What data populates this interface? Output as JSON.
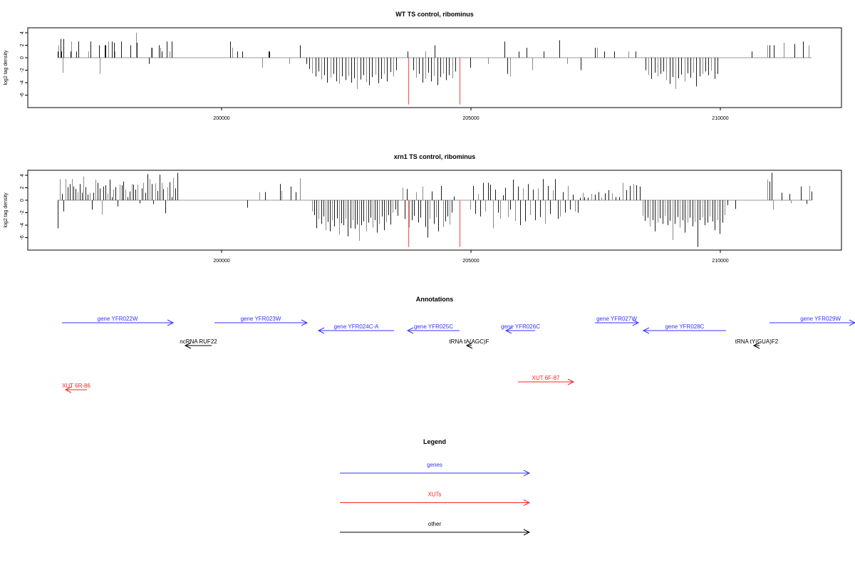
{
  "colors": {
    "gene": "#3333ff",
    "xut": "#ff2020",
    "other": "#000000",
    "highlight": "#ff6060",
    "axis": "#000000",
    "bar_dark": "#1a1a1a",
    "bar_light": "#8a8a8a"
  },
  "chart_data": [
    {
      "type": "bar",
      "title": "WT TS control, ribominus",
      "ylabel": "log2 tag density",
      "xlabel": "",
      "xlim": [
        196114,
        212429
      ],
      "ylim": [
        -8,
        4.8
      ],
      "yticks": [
        "4",
        "2",
        "0",
        "-2",
        "-4",
        "-6"
      ],
      "ytick_values": [
        4,
        2,
        0,
        -2,
        -4,
        -6
      ],
      "xticks": [
        "200000",
        "205000",
        "210000"
      ],
      "xtick_values": [
        200000,
        205000,
        210000
      ],
      "points": [
        [
          196714,
          1
        ],
        [
          196729,
          2
        ],
        [
          196771,
          3
        ],
        [
          196786,
          1
        ],
        [
          196814,
          -2.4
        ],
        [
          196829,
          3
        ],
        [
          196971,
          1
        ],
        [
          196986,
          2.6
        ],
        [
          197086,
          1
        ],
        [
          197129,
          2.6
        ],
        [
          197329,
          1
        ],
        [
          197371,
          2.6
        ],
        [
          197543,
          2
        ],
        [
          197557,
          -2.6
        ],
        [
          197657,
          2
        ],
        [
          197671,
          2
        ],
        [
          197729,
          2.6
        ],
        [
          197800,
          2.6
        ],
        [
          197843,
          2.4
        ],
        [
          197857,
          1
        ],
        [
          197986,
          2.6
        ],
        [
          198171,
          2
        ],
        [
          198286,
          4
        ],
        [
          198300,
          2.4
        ],
        [
          198543,
          -1
        ],
        [
          198586,
          1.6
        ],
        [
          198600,
          1.6
        ],
        [
          198743,
          2
        ],
        [
          198771,
          1.6
        ],
        [
          198800,
          1
        ],
        [
          198900,
          2.6
        ],
        [
          198957,
          1
        ],
        [
          199000,
          2.6
        ],
        [
          200171,
          2.6
        ],
        [
          200214,
          1.6
        ],
        [
          200314,
          1
        ],
        [
          200414,
          1
        ],
        [
          200814,
          -1.6
        ],
        [
          200943,
          1
        ],
        [
          200957,
          1
        ],
        [
          201357,
          -1
        ],
        [
          201571,
          2
        ],
        [
          203729,
          1
        ],
        [
          204086,
          1
        ],
        [
          204271,
          2
        ],
        [
          204986,
          -1.6
        ],
        [
          205343,
          -1
        ],
        [
          205671,
          2.6
        ],
        [
          205729,
          -2.6
        ],
        [
          205786,
          -3
        ],
        [
          205957,
          1
        ],
        [
          206114,
          1.6
        ],
        [
          206229,
          -2
        ],
        [
          206457,
          1
        ],
        [
          206771,
          2.8
        ],
        [
          206929,
          -1
        ],
        [
          207200,
          -2
        ],
        [
          207486,
          1.6
        ],
        [
          207529,
          1.6
        ],
        [
          207671,
          1
        ],
        [
          207871,
          1
        ],
        [
          208157,
          1
        ],
        [
          208300,
          1
        ],
        [
          210629,
          1
        ],
        [
          210943,
          2
        ],
        [
          210986,
          2
        ],
        [
          211071,
          2
        ],
        [
          211271,
          2.4
        ],
        [
          211486,
          2.2
        ],
        [
          211657,
          2.6
        ],
        [
          211771,
          2
        ]
      ],
      "segments": [
        {
          "start": 201700,
          "step": 60,
          "values": [
            -1,
            -1.8,
            -2.5,
            -3,
            -2.2,
            -3.5,
            -2.8,
            -4,
            -3.2,
            -2.6,
            -3.8,
            -4.2,
            -3,
            -3.6,
            -2.9,
            -4,
            -3.3,
            -5,
            -3.5,
            -2.8,
            -3.9,
            -4.4,
            -3.1,
            -2.7,
            -4.1,
            -3.4,
            -2.6,
            -3.8,
            -2.3,
            -3,
            -2
          ]
        },
        {
          "start": 203843,
          "step": 60,
          "values": [
            -2,
            -3.2,
            -2.6,
            -4,
            -3.4,
            -2.4,
            -3.8,
            -2.9,
            -4.4,
            -3.1,
            -2.5,
            -3.6,
            -2.8,
            -3.3,
            -2.2
          ]
        },
        {
          "start": 208500,
          "step": 60,
          "values": [
            -2,
            -2.8,
            -3.4,
            -2.4,
            -3,
            -2.6,
            -2.2,
            -3.6,
            -4.2,
            -3.1,
            -5,
            -3.3,
            -2.7,
            -3.8,
            -2.5,
            -3.2,
            -2.4,
            -4.6,
            -3,
            -2.6,
            -2.2,
            -2.8,
            -2.1,
            -3.4,
            -2.6
          ]
        }
      ],
      "highlights": [
        [
          203743,
          -7.5
        ],
        [
          204771,
          -7.5
        ]
      ]
    },
    {
      "type": "bar",
      "title": "xrn1 TS control, ribominus",
      "ylabel": "log2 tag density",
      "xlabel": "",
      "xlim": [
        196114,
        212429
      ],
      "ylim": [
        -8,
        4.8
      ],
      "yticks": [
        "4",
        "2",
        "0",
        "-2",
        "-4",
        "-6"
      ],
      "ytick_values": [
        4,
        2,
        0,
        -2,
        -4,
        -6
      ],
      "xticks": [
        "200000",
        "205000",
        "210000"
      ],
      "xtick_values": [
        200000,
        205000,
        210000
      ],
      "points": [
        [
          200514,
          -1.2
        ],
        [
          200757,
          1.3
        ],
        [
          200871,
          1.3
        ],
        [
          201171,
          2.6
        ],
        [
          201200,
          1.5
        ],
        [
          201386,
          2.2
        ],
        [
          201486,
          1.3
        ],
        [
          201571,
          3.5
        ],
        [
          210143,
          -0.8
        ],
        [
          210300,
          -1.4
        ],
        [
          210943,
          3.3
        ],
        [
          210986,
          3
        ],
        [
          211029,
          4.4
        ],
        [
          211057,
          -1.5
        ],
        [
          211229,
          1.2
        ],
        [
          211386,
          1
        ],
        [
          211414,
          -0.5
        ],
        [
          211614,
          2.2
        ],
        [
          211729,
          -0.6
        ],
        [
          211786,
          2.3
        ],
        [
          211829,
          1.4
        ]
      ],
      "segments": [
        {
          "start": 196714,
          "step": 40,
          "values": [
            -4.5,
            3.4,
            1,
            -1.8,
            3.4,
            2.1,
            2.6,
            3.4,
            2.2,
            1.8,
            1.3,
            2.6,
            1.2,
            3.8,
            2.1,
            0.9,
            1.2,
            -1.5,
            1.2,
            3.3,
            2.8,
            1.9,
            -2.3,
            2.2,
            2.4,
            1.1,
            3.3,
            0.5,
            1.7,
            2.1,
            -1,
            2.5,
            2.4,
            3,
            1.7,
            0.5,
            1.4,
            2.6,
            2.5,
            1.7,
            2.5,
            -0.5,
            1.9,
            2.8,
            1.2,
            4.2,
            3.4,
            2.6,
            -0.6,
            2.7,
            1.5,
            4.1,
            2.8,
            1.8,
            -2.1,
            2.1,
            2.9,
            0.5,
            3.6,
            1.9,
            4.4
          ]
        },
        {
          "start": 201814,
          "step": 45,
          "values": [
            -1.8,
            -2.4,
            -4.5,
            -3,
            -3.8,
            -2.6,
            -4.8,
            -3.5,
            -5,
            -3.2,
            -4.2,
            -2.9,
            -5.5,
            -3.7,
            -4,
            -3,
            -5.8,
            -4.5,
            -3.2,
            -4.6,
            -3.9,
            -6.5,
            -4,
            -3.4,
            -5,
            -3.6,
            -2.8,
            -4.4,
            -3.2,
            -5.2,
            -3.8,
            -2.6,
            -4.8,
            -3.5,
            -2.4,
            -3.9,
            -2,
            -1.5,
            -2.5
          ]
        },
        {
          "start": 203629,
          "step": 45,
          "values": [
            2,
            -3,
            1.8,
            -4.4,
            -3.2,
            -2.5,
            1.3,
            -3.6,
            -2.8,
            2.2,
            -4.3,
            -6,
            -3,
            1.4,
            -3.8,
            -2.7,
            -5,
            2.3,
            -4.3,
            -3.4,
            -2.6,
            -3.9,
            -2,
            0.6
          ]
        },
        {
          "start": 204986,
          "step": 50,
          "values": [
            -1.5,
            2.3,
            -2.2,
            1,
            -2.6,
            2.8,
            -1.8,
            2.8,
            2.5,
            -4.5,
            1.7,
            -2,
            -3,
            0.8,
            2,
            -2.7,
            -1.5,
            3.3,
            -3.3,
            2.2,
            -4,
            1.9,
            -3.4,
            2.6,
            -2.4,
            1.7,
            -3.2,
            1.9,
            -2.7,
            3.4,
            -3.8,
            2.3,
            -2.2,
            1.6,
            3.4,
            -3,
            -2.6,
            1.3,
            -2,
            2.3,
            -1.5,
            0.9,
            -1.8,
            -2,
            0.4,
            1.2
          ]
        },
        {
          "start": 207271,
          "step": 70,
          "values": [
            0.5,
            0.4,
            1,
            0.9,
            1.3,
            0.4,
            1.1,
            1.6,
            1.1,
            0.5,
            0.5,
            2.8,
            1.6,
            2.3,
            2.6,
            2.4,
            2.2
          ]
        },
        {
          "start": 208443,
          "step": 50,
          "values": [
            -2.5,
            -3.3,
            -2.8,
            -4.2,
            -3.2,
            -5,
            -3.6,
            -2.9,
            -3.8,
            -2.5,
            -4,
            -3.3,
            -6.4,
            -3.8,
            -2.7,
            -4.4,
            -3.2,
            -5.2,
            -3.6,
            -2.8,
            -4.2,
            -3.5,
            -7.5,
            -3.2,
            -2.8,
            -4,
            -3.6,
            -2.6,
            -3.4,
            -4.8,
            -3.2,
            -5.4,
            -3.6,
            -2.4
          ]
        }
      ],
      "highlights": [
        [
          203743,
          -7.5
        ],
        [
          204771,
          -7.5
        ]
      ]
    }
  ],
  "annotations": {
    "title": "Annotations",
    "features": [
      {
        "label": "gene YFR022W",
        "kind": "gene",
        "strand": "+",
        "start": 196800,
        "end": 199029
      },
      {
        "label": "gene YFR023W",
        "kind": "gene",
        "strand": "+",
        "start": 199857,
        "end": 201714
      },
      {
        "label": "gene YFR024C-A",
        "kind": "gene",
        "strand": "-",
        "start": 201943,
        "end": 203457
      },
      {
        "label": "gene YFR025C",
        "kind": "gene",
        "strand": "-",
        "start": 203729,
        "end": 204771
      },
      {
        "label": "gene YFR026C",
        "kind": "gene",
        "strand": "-",
        "start": 205700,
        "end": 206286
      },
      {
        "label": "gene YFR027W",
        "kind": "gene",
        "strand": "+",
        "start": 207486,
        "end": 208357
      },
      {
        "label": "gene YFR028C",
        "kind": "gene",
        "strand": "-",
        "start": 208457,
        "end": 210114
      },
      {
        "label": "gene YFR029W",
        "kind": "gene",
        "strand": "+",
        "start": 210986,
        "end": 212700
      },
      {
        "label": "ncRNA RUF22",
        "kind": "other",
        "strand": "-",
        "start": 199271,
        "end": 199800
      },
      {
        "label": "tRNA tA(AGC)F",
        "kind": "other",
        "strand": "-",
        "start": 204914,
        "end": 205014
      },
      {
        "label": "tRNA tY(GUA)F2",
        "kind": "other",
        "strand": "-",
        "start": 210671,
        "end": 210786
      },
      {
        "label": "XUT 6R-86",
        "kind": "xut",
        "strand": "-",
        "start": 196871,
        "end": 197300
      },
      {
        "label": "XUT 6F-87",
        "kind": "xut",
        "strand": "+",
        "start": 205943,
        "end": 207057
      }
    ]
  },
  "legend": {
    "title": "Legend",
    "items": [
      {
        "label": "genes",
        "kind": "gene"
      },
      {
        "label": "XUTs",
        "kind": "xut"
      },
      {
        "label": "other",
        "kind": "other"
      }
    ]
  }
}
